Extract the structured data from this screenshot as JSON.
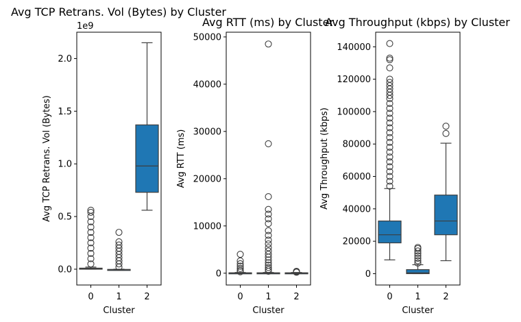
{
  "chart_data": [
    {
      "type": "box",
      "title": "Avg TCP Retrans. Vol (Bytes) by Cluster",
      "xlabel": "Cluster",
      "ylabel": "Avg TCP Retrans. Vol (Bytes)",
      "ylim": [
        -0.15,
        2.25
      ],
      "yticks": [
        0.0,
        0.5,
        1.0,
        1.5,
        2.0
      ],
      "ytick_labels": [
        "0.0",
        "0.5",
        "1.0",
        "1.5",
        "2.0"
      ],
      "y_offset_label": "1e9",
      "categories": [
        "0",
        "1",
        "2"
      ],
      "color": "#1f77b4",
      "boxes": [
        {
          "q1": 0.0,
          "median": 0.003,
          "q3": 0.01,
          "whisker_low": 0.0,
          "whisker_high": 0.02,
          "outliers": [
            0.05,
            0.1,
            0.15,
            0.2,
            0.25,
            0.3,
            0.35,
            0.4,
            0.45,
            0.5,
            0.54,
            0.56
          ]
        },
        {
          "q1": -0.005,
          "median": -0.005,
          "q3": -0.002,
          "whisker_low": -0.01,
          "whisker_high": 0.0,
          "outliers": [
            0.02,
            0.05,
            0.08,
            0.11,
            0.14,
            0.17,
            0.2,
            0.23,
            0.26,
            0.35
          ]
        },
        {
          "q1": 0.73,
          "median": 0.98,
          "q3": 1.37,
          "whisker_low": 0.56,
          "whisker_high": 2.15,
          "outliers": []
        }
      ]
    },
    {
      "type": "box",
      "title": "Avg RTT (ms) by Cluster",
      "xlabel": "Cluster",
      "ylabel": "Avg RTT (ms)",
      "ylim": [
        -2500,
        51000
      ],
      "yticks": [
        0,
        10000,
        20000,
        30000,
        40000,
        50000
      ],
      "ytick_labels": [
        "0",
        "10000",
        "20000",
        "30000",
        "40000",
        "50000"
      ],
      "categories": [
        "0",
        "1",
        "2"
      ],
      "color": "#1f77b4",
      "boxes": [
        {
          "q1": 0,
          "median": 40,
          "q3": 80,
          "whisker_low": 0,
          "whisker_high": 150,
          "outliers": [
            300,
            600,
            1000,
            1500,
            2000,
            2600,
            4000
          ]
        },
        {
          "q1": 0,
          "median": 40,
          "q3": 80,
          "whisker_low": 0,
          "whisker_high": 150,
          "outliers": [
            400,
            800,
            1200,
            1700,
            2200,
            2800,
            3400,
            4000,
            4700,
            5400,
            6200,
            7000,
            8000,
            9000,
            10500,
            11500,
            12500,
            13500,
            16200,
            27400,
            48500
          ]
        },
        {
          "q1": 0,
          "median": 40,
          "q3": 80,
          "whisker_low": 0,
          "whisker_high": 150,
          "outliers": [
            200,
            300,
            400
          ]
        }
      ]
    },
    {
      "type": "box",
      "title": "Avg Throughput (kbps) by Cluster",
      "xlabel": "Cluster",
      "ylabel": "Avg Throughput (kbps)",
      "ylim": [
        -7000,
        149000
      ],
      "yticks": [
        0,
        20000,
        40000,
        60000,
        80000,
        100000,
        120000,
        140000
      ],
      "ytick_labels": [
        "0",
        "20000",
        "40000",
        "60000",
        "80000",
        "100000",
        "120000",
        "140000"
      ],
      "categories": [
        "0",
        "1",
        "2"
      ],
      "color": "#1f77b4",
      "boxes": [
        {
          "q1": 19000,
          "median": 24000,
          "q3": 32500,
          "whisker_low": 8500,
          "whisker_high": 52500,
          "outliers": [
            54000,
            57000,
            60000,
            63000,
            66000,
            69000,
            72000,
            75000,
            78000,
            81000,
            84000,
            87000,
            90000,
            93000,
            96000,
            99000,
            102000,
            105000,
            108000,
            110000,
            112000,
            114000,
            116000,
            118000,
            120000,
            127000,
            132000,
            133000,
            142000
          ]
        },
        {
          "q1": 0,
          "median": 500,
          "q3": 2500,
          "whisker_low": 0,
          "whisker_high": 5500,
          "outliers": [
            6500,
            8000,
            9500,
            11000,
            12500,
            14000,
            15500,
            16200
          ]
        },
        {
          "q1": 24000,
          "median": 32500,
          "q3": 48500,
          "whisker_low": 8000,
          "whisker_high": 80500,
          "outliers": [
            86500,
            91000
          ]
        }
      ]
    }
  ]
}
